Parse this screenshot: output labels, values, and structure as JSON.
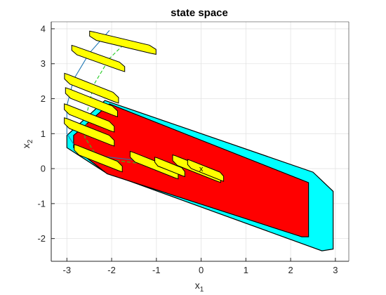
{
  "chart_data": {
    "type": "scatter",
    "title": "state space",
    "xlabel": {
      "main": "x",
      "sub": "1"
    },
    "ylabel": {
      "main": "x",
      "sub": "2"
    },
    "xlim": [
      -3.35,
      3.3
    ],
    "ylim": [
      -2.65,
      4.2
    ],
    "grid": true,
    "xticks": [
      -3,
      -2,
      -1,
      0,
      1,
      2,
      3
    ],
    "yticks": [
      -2,
      -1,
      0,
      1,
      2,
      3,
      4
    ],
    "colors": {
      "outer_set": "#00ffff",
      "inner_set": "#ff0000",
      "reach_set": "#ffff00",
      "edge": "#000000",
      "trajectory": "#1f77b4",
      "center_path": "#22cc22",
      "grid": "#e3e3e3"
    },
    "regions": [
      {
        "name": "outer-set",
        "color": "cyan",
        "vertices": [
          [
            -3.0,
            0.95
          ],
          [
            -2.15,
            1.95
          ],
          [
            2.5,
            -0.1
          ],
          [
            2.95,
            -0.65
          ],
          [
            2.95,
            -2.3
          ],
          [
            2.7,
            -2.35
          ],
          [
            -2.15,
            -0.1
          ],
          [
            -3.0,
            0.6
          ]
        ]
      },
      {
        "name": "inner-set",
        "color": "red",
        "vertices": [
          [
            -2.85,
            0.95
          ],
          [
            -2.05,
            1.85
          ],
          [
            2.4,
            -0.4
          ],
          [
            2.4,
            -1.95
          ],
          [
            2.25,
            -1.95
          ],
          [
            -2.1,
            -0.15
          ],
          [
            -2.85,
            0.6
          ]
        ]
      }
    ],
    "reachable_sets": [
      {
        "center": [
          -1.75,
          3.6
        ],
        "direction": [
          1,
          -0.3
        ],
        "length": 1.55,
        "width": 0.22
      },
      {
        "center": [
          -2.3,
          3.15
        ],
        "direction": [
          1,
          -0.45
        ],
        "length": 1.3,
        "width": 0.22
      },
      {
        "center": [
          -2.45,
          2.3
        ],
        "direction": [
          1,
          -0.5
        ],
        "length": 1.35,
        "width": 0.25
      },
      {
        "center": [
          -2.45,
          1.9
        ],
        "direction": [
          1,
          -0.5
        ],
        "length": 1.3,
        "width": 0.25
      },
      {
        "center": [
          -2.5,
          1.45
        ],
        "direction": [
          1,
          -0.5
        ],
        "length": 1.25,
        "width": 0.25
      },
      {
        "center": [
          -2.5,
          1.05
        ],
        "direction": [
          1,
          -0.5
        ],
        "length": 1.25,
        "width": 0.25
      },
      {
        "center": [
          -2.3,
          0.3
        ],
        "direction": [
          1,
          -0.5
        ],
        "length": 1.2,
        "width": 0.25
      },
      {
        "center": [
          -1.05,
          0.1
        ],
        "direction": [
          1,
          -0.5
        ],
        "length": 1.2,
        "width": 0.25
      },
      {
        "center": [
          -0.7,
          0.05
        ],
        "direction": [
          1,
          -0.5
        ],
        "length": 0.75,
        "width": 0.22
      },
      {
        "center": [
          -0.1,
          0.0
        ],
        "direction": [
          1,
          -0.5
        ],
        "length": 1.2,
        "width": 0.25
      },
      {
        "center": [
          0.1,
          -0.05
        ],
        "direction": [
          1,
          -0.5
        ],
        "length": 0.9,
        "width": 0.22
      }
    ],
    "series": [
      {
        "type": "line",
        "style": "solid",
        "color": "trajectory",
        "points": [
          [
            -2.05,
            3.95
          ],
          [
            -2.5,
            3.3
          ],
          [
            -2.85,
            2.55
          ],
          [
            -3.0,
            1.8
          ],
          [
            -3.0,
            1.0
          ],
          [
            -2.75,
            0.5
          ],
          [
            -2.2,
            0.35
          ],
          [
            -1.2,
            0.2
          ],
          [
            -0.4,
            0.05
          ],
          [
            0.0,
            0.0
          ]
        ]
      },
      {
        "type": "line",
        "style": "dashed",
        "color": "center_path",
        "points": [
          [
            -1.65,
            3.65
          ],
          [
            -2.05,
            3.15
          ],
          [
            -2.4,
            2.4
          ],
          [
            -2.55,
            1.6
          ],
          [
            -2.6,
            0.9
          ],
          [
            -2.3,
            0.3
          ],
          [
            -1.4,
            0.15
          ],
          [
            -0.5,
            0.05
          ],
          [
            0.0,
            0.0
          ]
        ]
      }
    ],
    "markers": [
      {
        "label": "x",
        "point": [
          0.0,
          0.0
        ]
      }
    ]
  }
}
